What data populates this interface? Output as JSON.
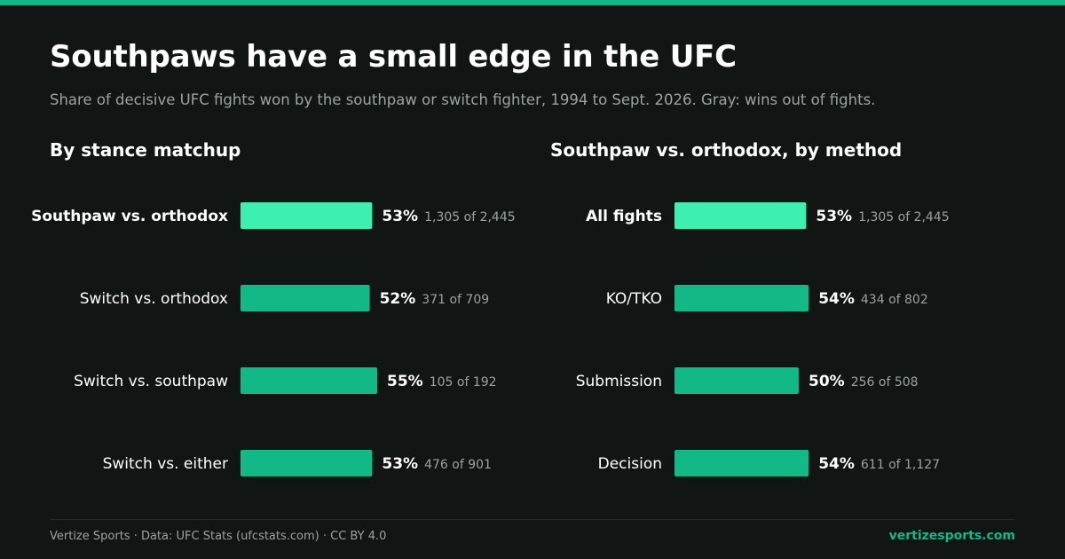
{
  "title": "Southpaws have a small edge in the UFC",
  "subtitle": "Share of decisive UFC fights won by the southpaw or switch fighter, 1994 to Sept. 2026. Gray: wins out of fights.",
  "footer": {
    "credit": "Vertize Sports · Data: UFC Stats (ufcstats.com) · CC BY 4.0",
    "site": "vertizesports.com"
  },
  "colors": {
    "background": "#111615",
    "accent": "#12b886",
    "highlight": "#3ef0b0",
    "muted_text": "#9aa3a0"
  },
  "chart_data": [
    {
      "type": "bar",
      "orientation": "horizontal",
      "title": "By stance matchup",
      "categories": [
        "Southpaw vs. orthodox",
        "Switch vs. orthodox",
        "Switch vs. southpaw",
        "Switch vs. either"
      ],
      "values": [
        53,
        52,
        55,
        53
      ],
      "value_labels": [
        "53%",
        "52%",
        "55%",
        "53%"
      ],
      "detail_labels": [
        "1,305 of 2,445",
        "371 of 709",
        "105 of 192",
        "476 of 901"
      ],
      "highlight_index": 0,
      "grid": false
    },
    {
      "type": "bar",
      "orientation": "horizontal",
      "title": "Southpaw vs. orthodox, by method",
      "categories": [
        "All fights",
        "KO/TKO",
        "Submission",
        "Decision"
      ],
      "values": [
        53,
        54,
        50,
        54
      ],
      "value_labels": [
        "53%",
        "54%",
        "50%",
        "54%"
      ],
      "detail_labels": [
        "1,305 of 2,445",
        "434 of 802",
        "256 of 508",
        "611 of 1,127"
      ],
      "highlight_index": 0,
      "grid": false
    }
  ]
}
